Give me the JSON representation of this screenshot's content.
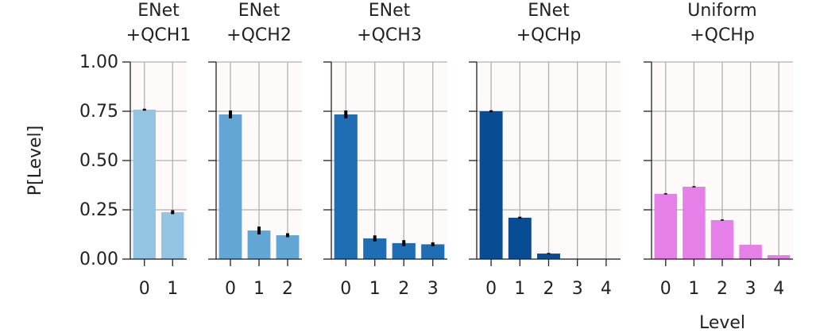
{
  "chart_data": [
    {
      "type": "bar",
      "title": [
        "ENet",
        "+QCH1"
      ],
      "ylabel": "P[Level]",
      "categories": [
        "0",
        "1"
      ],
      "values": [
        0.758,
        0.238
      ],
      "errors": [
        0.005,
        0.01
      ],
      "color": "#93c4e2",
      "ylim": [
        0,
        1
      ],
      "yticks": [
        {
          "value": 0,
          "label": "0.00"
        },
        {
          "value": 0.25,
          "label": "0.25"
        },
        {
          "value": 0.5,
          "label": "0.50"
        },
        {
          "value": 0.75,
          "label": "0.75"
        },
        {
          "value": 1,
          "label": "1.00"
        }
      ],
      "grid": true
    },
    {
      "type": "bar",
      "title": [
        "ENet",
        "+QCH2"
      ],
      "categories": [
        "0",
        "1",
        "2"
      ],
      "values": [
        0.734,
        0.145,
        0.121
      ],
      "errors": [
        0.02,
        0.02,
        0.01
      ],
      "color": "#61a6d4",
      "ylim": [
        0,
        1
      ],
      "yticks": [
        0,
        0.25,
        0.5,
        0.75,
        1
      ],
      "grid": true
    },
    {
      "type": "bar",
      "title": [
        "ENet",
        "+QCH3"
      ],
      "categories": [
        "0",
        "1",
        "2",
        "3"
      ],
      "values": [
        0.734,
        0.105,
        0.081,
        0.075
      ],
      "errors": [
        0.02,
        0.015,
        0.015,
        0.01
      ],
      "color": "#1f6db3",
      "ylim": [
        0,
        1
      ],
      "yticks": [
        0,
        0.25,
        0.5,
        0.75,
        1
      ],
      "grid": true
    },
    {
      "type": "bar",
      "title": [
        "ENet",
        "+QCHp"
      ],
      "categories": [
        "0",
        "1",
        "2",
        "3",
        "4"
      ],
      "values": [
        0.75,
        0.21,
        0.028,
        0,
        0
      ],
      "errors": [
        0.005,
        0.005,
        0.003,
        0,
        0
      ],
      "color": "#084c94",
      "ylim": [
        0,
        1
      ],
      "yticks": [
        0,
        0.25,
        0.5,
        0.75,
        1
      ],
      "grid": true
    },
    {
      "type": "bar",
      "title": [
        "Uniform",
        "+QCHp"
      ],
      "xlabel": "Level",
      "categories": [
        "0",
        "1",
        "2",
        "3",
        "4"
      ],
      "values": [
        0.331,
        0.367,
        0.198,
        0.073,
        0.02
      ],
      "errors": [
        0.003,
        0.003,
        0.003,
        0,
        0
      ],
      "color": "#e580e8",
      "ylim": [
        0,
        1
      ],
      "yticks": [
        0,
        0.25,
        0.5,
        0.75,
        1
      ],
      "grid": true
    }
  ]
}
